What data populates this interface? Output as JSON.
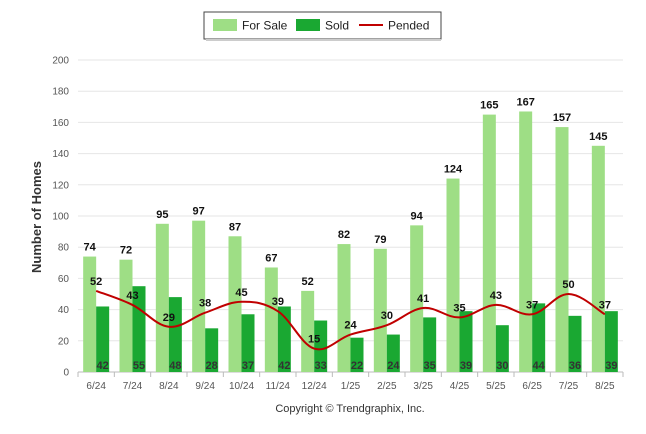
{
  "chart_data": {
    "type": "bar",
    "ylabel": "Number of Homes",
    "ylim": [
      0,
      200
    ],
    "yticks": [
      0,
      20,
      40,
      60,
      80,
      100,
      120,
      140,
      160,
      180,
      200
    ],
    "grid": true,
    "legend_position": "top-center",
    "categories": [
      "6/24",
      "7/24",
      "8/24",
      "9/24",
      "10/24",
      "11/24",
      "12/24",
      "1/25",
      "2/25",
      "3/25",
      "4/25",
      "5/25",
      "6/25",
      "7/25",
      "8/25"
    ],
    "series": [
      {
        "name": "For Sale",
        "kind": "bar",
        "color": "#9ede85",
        "values": [
          74,
          72,
          95,
          97,
          87,
          67,
          52,
          82,
          79,
          94,
          124,
          165,
          167,
          157,
          145
        ]
      },
      {
        "name": "Sold",
        "kind": "bar",
        "color": "#1aa832",
        "values": [
          42,
          55,
          48,
          28,
          37,
          42,
          33,
          22,
          24,
          35,
          39,
          30,
          44,
          36,
          39
        ]
      },
      {
        "name": "Pended",
        "kind": "line",
        "color": "#c00000",
        "values": [
          52,
          43,
          29,
          38,
          45,
          39,
          15,
          24,
          30,
          41,
          35,
          43,
          37,
          50,
          37
        ]
      }
    ],
    "footer": "Copyright © Trendgraphix, Inc."
  }
}
